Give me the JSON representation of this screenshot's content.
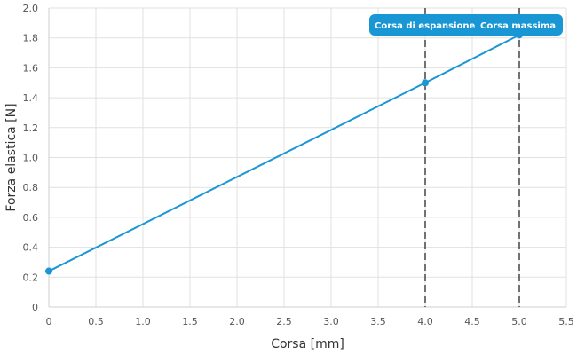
{
  "chart_data": {
    "type": "line",
    "xlabel": "Corsa [mm]",
    "ylabel": "Forza elastica [N]",
    "xlim": [
      0,
      5.5
    ],
    "ylim": [
      0,
      2.0
    ],
    "x_ticks": [
      "0",
      "0.5",
      "1.0",
      "1.5",
      "2.0",
      "2.5",
      "3.0",
      "3.5",
      "4.0",
      "4.5",
      "5.0",
      "5.5"
    ],
    "y_ticks": [
      "0",
      "0.2",
      "0.4",
      "0.6",
      "0.8",
      "1.0",
      "1.2",
      "1.4",
      "1.6",
      "1.8",
      "2.0"
    ],
    "grid": true,
    "series": [
      {
        "x": [
          0,
          4.0,
          5.0
        ],
        "y": [
          0.24,
          1.5,
          1.82
        ],
        "color": "#1996d4"
      }
    ],
    "markers": [
      {
        "x": 4.0,
        "label": "Corsa di espansione"
      },
      {
        "x": 5.0,
        "label": "Corsa massima"
      }
    ],
    "label_color": "#1996d4"
  }
}
